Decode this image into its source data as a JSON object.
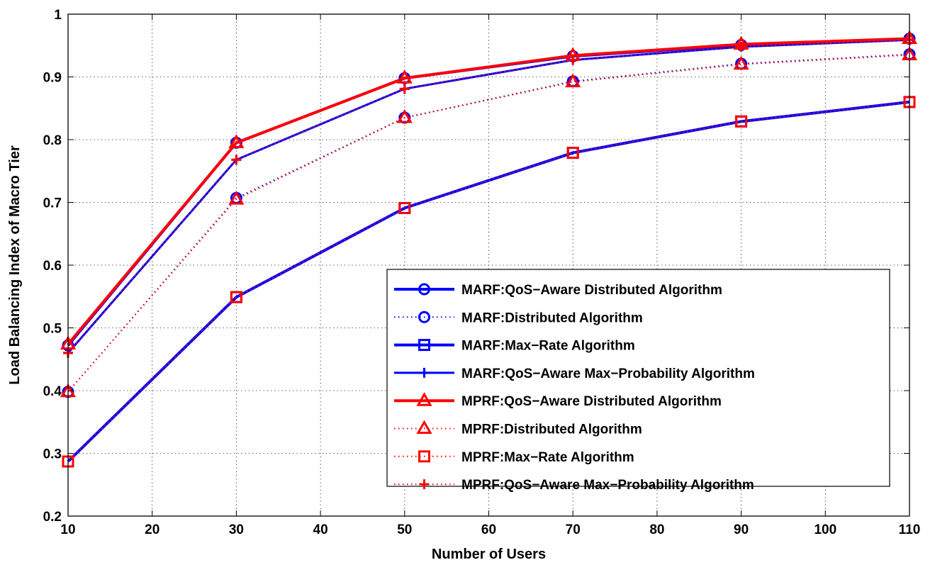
{
  "chart_data": {
    "type": "line",
    "title": "",
    "xlabel": "Number of Users",
    "ylabel": "Load Balancing Index of Macro Tier",
    "xlim": [
      10,
      110
    ],
    "ylim": [
      0.2,
      1.0
    ],
    "xticks": [
      10,
      20,
      30,
      40,
      50,
      60,
      70,
      80,
      90,
      100,
      110
    ],
    "yticks": [
      0.2,
      0.3,
      0.4,
      0.5,
      0.6,
      0.7,
      0.8,
      0.9,
      1.0
    ],
    "xtick_labels": [
      "10",
      "20",
      "30",
      "40",
      "50",
      "60",
      "70",
      "80",
      "90",
      "100",
      "110"
    ],
    "ytick_labels": [
      "0.2",
      "0.3",
      "0.4",
      "0.5",
      "0.6",
      "0.7",
      "0.8",
      "0.9",
      "1"
    ],
    "grid": true,
    "legend_position": "lower-right",
    "x": [
      10,
      30,
      50,
      70,
      90,
      110
    ],
    "series": [
      {
        "name": "MARF:QoS−Aware Distributed Algorithm",
        "color": "#0000ff",
        "line_style": "solid",
        "line_width": "thick",
        "marker": "circle",
        "values": [
          0.472,
          0.795,
          0.898,
          0.933,
          0.951,
          0.961
        ]
      },
      {
        "name": "MARF:Distributed Algorithm",
        "color": "#0000ff",
        "line_style": "dotted",
        "line_width": "thin",
        "marker": "circle",
        "values": [
          0.398,
          0.707,
          0.835,
          0.893,
          0.921,
          0.936
        ]
      },
      {
        "name": "MARF:Max−Rate Algorithm",
        "color": "#0000ff",
        "line_style": "solid",
        "line_width": "thick",
        "marker": "square",
        "values": [
          0.287,
          0.549,
          0.691,
          0.779,
          0.829,
          0.86
        ]
      },
      {
        "name": "MARF:QoS−Aware Max−Probability Algorithm",
        "color": "#0000ff",
        "line_style": "solid",
        "line_width": "medium",
        "marker": "plus",
        "values": [
          0.46,
          0.768,
          0.881,
          0.927,
          0.948,
          0.959
        ]
      },
      {
        "name": "MPRF:QoS−Aware Distributed Algorithm",
        "color": "#ff0000",
        "line_style": "solid",
        "line_width": "thick",
        "marker": "triangle",
        "values": [
          0.474,
          0.795,
          0.898,
          0.934,
          0.952,
          0.961
        ]
      },
      {
        "name": "MPRF:Distributed Algorithm",
        "color": "#ff0000",
        "line_style": "dotted",
        "line_width": "thin",
        "marker": "triangle",
        "values": [
          0.398,
          0.705,
          0.835,
          0.892,
          0.92,
          0.935
        ]
      },
      {
        "name": "MPRF:Max−Rate Algorithm",
        "color": "#ff0000",
        "line_style": "dotted",
        "line_width": "thin",
        "marker": "square",
        "values": [
          0.287,
          0.549,
          0.691,
          0.779,
          0.829,
          0.86
        ]
      },
      {
        "name": "MPRF:QoS−Aware Max−Probability Algorithm",
        "color": "#ff0000",
        "line_style": "dotted",
        "line_width": "thin",
        "marker": "plus",
        "values": [
          0.46,
          0.768,
          0.881,
          0.927,
          0.948,
          0.959
        ]
      }
    ]
  }
}
